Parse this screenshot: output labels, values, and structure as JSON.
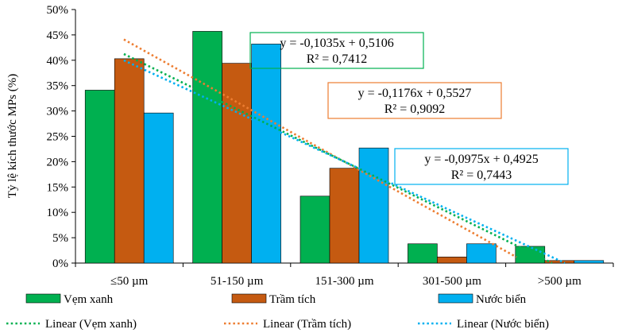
{
  "chart_data": {
    "type": "bar",
    "ylabel": "Tỷ lệ kích thước MPs (%)",
    "xlabel": "",
    "categories": [
      "≤50 µm",
      "51-150 µm",
      "151-300 µm",
      "301-500 µm",
      ">500 µm"
    ],
    "ylim": [
      0,
      0.5
    ],
    "ytick_values": [
      0,
      0.05,
      0.1,
      0.15,
      0.2,
      0.25,
      0.3,
      0.35,
      0.4,
      0.45,
      0.5
    ],
    "ytick_labels": [
      "0%",
      "5%",
      "10%",
      "15%",
      "20%",
      "25%",
      "30%",
      "35%",
      "40%",
      "45%",
      "50%"
    ],
    "grid": false,
    "legend_position": "bottom",
    "series": [
      {
        "name": "Vẹm xanh",
        "color": "#00b050",
        "values": [
          0.341,
          0.457,
          0.132,
          0.038,
          0.033
        ]
      },
      {
        "name": "Trầm tích",
        "color": "#c55a11",
        "values": [
          0.403,
          0.394,
          0.187,
          0.012,
          0.005
        ]
      },
      {
        "name": "Nước biển",
        "color": "#00b0f0",
        "values": [
          0.296,
          0.432,
          0.227,
          0.038,
          0.005
        ]
      }
    ],
    "trendlines": [
      {
        "name": "Linear (Vẹm xanh)",
        "series": "Vẹm xanh",
        "color": "#00b050",
        "slope": -0.1035,
        "intercept": 0.5106,
        "equation": "y = -0,1035x + 0,5106",
        "r2": "R² = 0,7412"
      },
      {
        "name": "Linear (Trầm tích)",
        "series": "Trầm tích",
        "color": "#ed7d31",
        "slope": -0.1176,
        "intercept": 0.5527,
        "equation": "y = -0,1176x + 0,5527",
        "r2": "R² = 0,9092"
      },
      {
        "name": "Linear (Nước biển)",
        "series": "Nước biển",
        "color": "#00b0f0",
        "slope": -0.0975,
        "intercept": 0.4925,
        "equation": "y = -0,0975x + 0,4925",
        "r2": "R² = 0,7443"
      }
    ]
  }
}
